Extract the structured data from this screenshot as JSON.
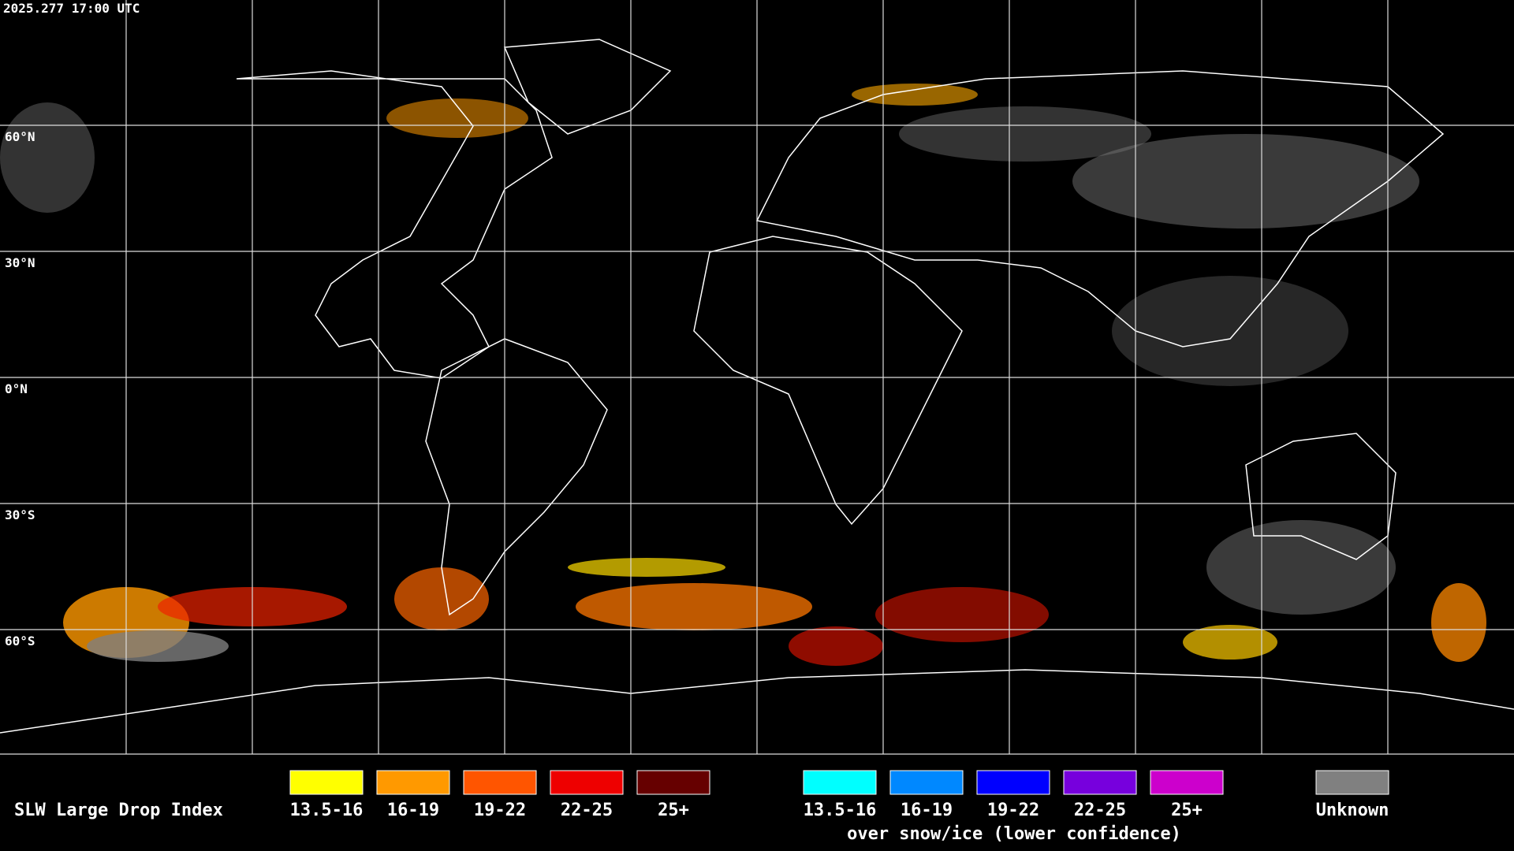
{
  "header": {
    "timestamp": "2025.277 17:00 UTC"
  },
  "map": {
    "lat_labels": [
      "60°N",
      "30°N",
      "0°N",
      "30°S",
      "60°S"
    ]
  },
  "legend": {
    "title": "SLW Large Drop Index",
    "normal": [
      {
        "label": "13.5-16",
        "color": "#ffff00"
      },
      {
        "label": "16-19",
        "color": "#ff9900"
      },
      {
        "label": "19-22",
        "color": "#ff5500"
      },
      {
        "label": "22-25",
        "color": "#ee0000"
      },
      {
        "label": "25+",
        "color": "#660000"
      }
    ],
    "snow_ice": [
      {
        "label": "13.5-16",
        "color": "#00ffff"
      },
      {
        "label": "16-19",
        "color": "#0088ff"
      },
      {
        "label": "19-22",
        "color": "#0000ff"
      },
      {
        "label": "22-25",
        "color": "#7700dd"
      },
      {
        "label": "25+",
        "color": "#cc00cc"
      }
    ],
    "snow_ice_caption": "over snow/ice (lower confidence)",
    "unknown": {
      "label": "Unknown",
      "color": "#808080"
    }
  }
}
